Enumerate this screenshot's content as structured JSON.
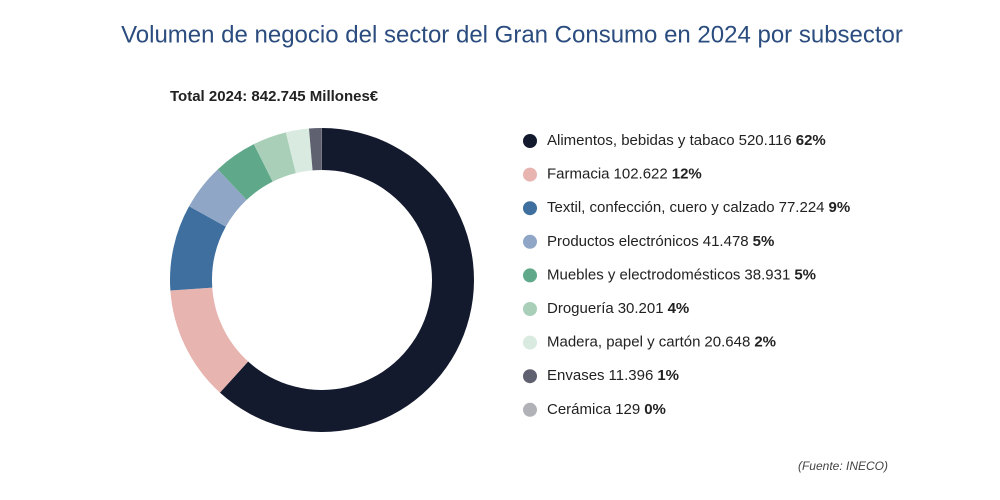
{
  "chart_data": {
    "type": "donut",
    "title": "Volumen de negocio del sector del Gran Consumo en 2024 por subsector",
    "subtitle": "Total 2024: 842.745 Millones€",
    "source": "(Fuente: INECO)",
    "categories": [
      "Alimentos, bebidas y tabaco",
      "Farmacia",
      "Textil, confección, cuero y calzado",
      "Productos electrónicos",
      "Muebles y electrodomésticos",
      "Droguería",
      "Madera, papel y cartón",
      "Envases",
      "Cerámica"
    ],
    "values": [
      520116,
      102622,
      77224,
      41478,
      38931,
      30201,
      20648,
      11396,
      129
    ],
    "value_labels": [
      "520.116",
      "102.622",
      "77.224",
      "41.478",
      "38.931",
      "30.201",
      "20.648",
      "11.396",
      "129"
    ],
    "shares": [
      "62%",
      "12%",
      "9%",
      "5%",
      "5%",
      "4%",
      "2%",
      "1%",
      "0%"
    ],
    "colors": [
      "#141a2e",
      "#e8b4b0",
      "#3e6f9e",
      "#8fa6c6",
      "#5fa98a",
      "#a9cfb9",
      "#d9ebe0",
      "#5f6170",
      "#b0b2b8"
    ]
  }
}
